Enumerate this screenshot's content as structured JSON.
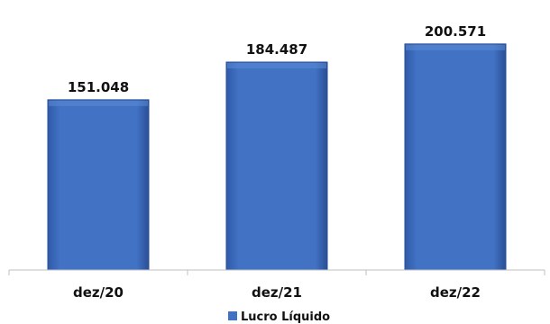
{
  "chart_data": {
    "type": "bar",
    "categories": [
      "dez/20",
      "dez/21",
      "dez/22"
    ],
    "series": [
      {
        "name": "Lucro Líquido",
        "values": [
          151048,
          184487,
          200571
        ],
        "labels": [
          "151.048",
          "184.487",
          "200.571"
        ]
      }
    ],
    "ylim": [
      0,
      230000
    ],
    "grid": false,
    "legend": "bottom",
    "colors": {
      "bar": "#4272c4",
      "bar_dark": "#2a4f96",
      "axis": "#bfbfbf"
    }
  }
}
